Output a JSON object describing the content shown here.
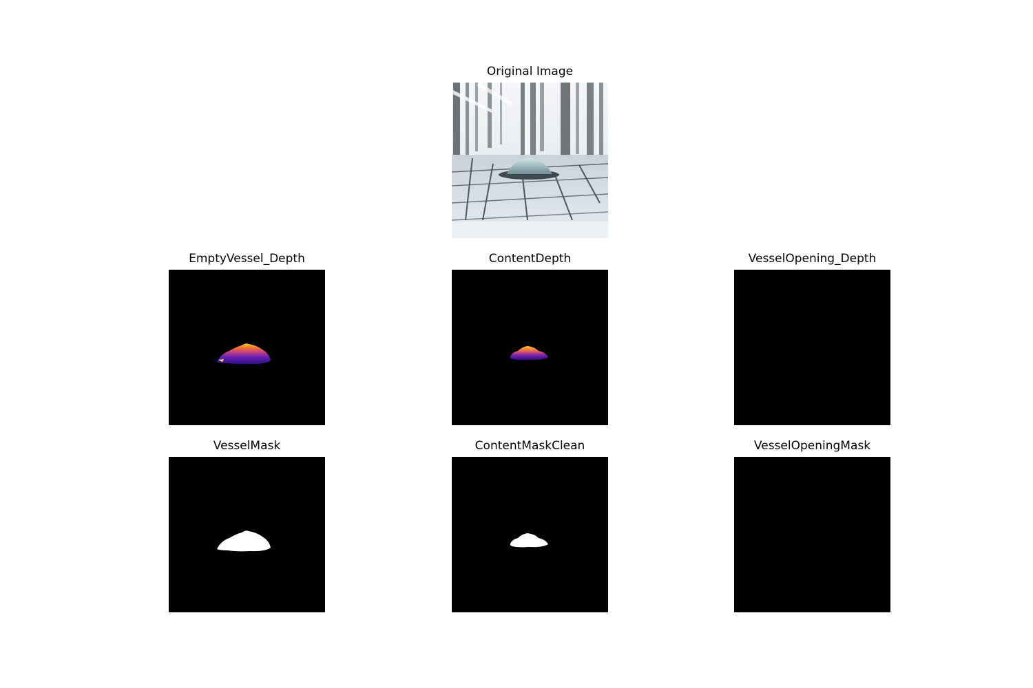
{
  "figure": {
    "panels": [
      {
        "id": "original",
        "title": "Original Image"
      },
      {
        "id": "empty-vessel-depth",
        "title": "EmptyVessel_Depth"
      },
      {
        "id": "content-depth",
        "title": "ContentDepth"
      },
      {
        "id": "vessel-opening-depth",
        "title": "VesselOpening_Depth"
      },
      {
        "id": "vessel-mask",
        "title": "VesselMask"
      },
      {
        "id": "content-mask-clean",
        "title": "ContentMaskClean"
      },
      {
        "id": "vessel-opening-mask",
        "title": "VesselOpeningMask"
      }
    ]
  },
  "colors": {
    "background": "#ffffff",
    "mask_background": "#000000",
    "mask_foreground": "#ffffff",
    "depth_colormap": [
      "#1a0b6b",
      "#5a1fb0",
      "#c23a8a",
      "#f06a2a",
      "#f5b623",
      "#f7e85a"
    ]
  }
}
